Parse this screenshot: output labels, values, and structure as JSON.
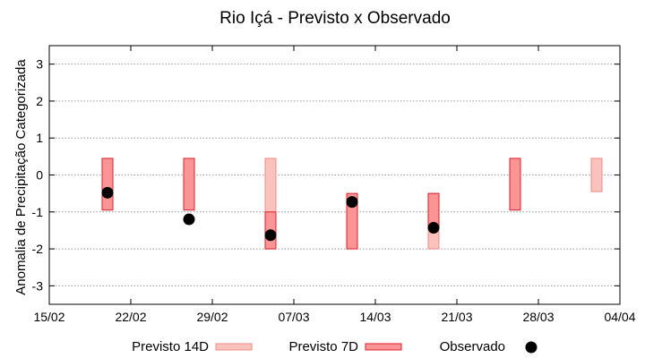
{
  "chart_data": {
    "type": "range-bar-scatter",
    "title": "Rio Içá - Previsto x Observado",
    "xlabel": "",
    "ylabel": "Anomalia de Precipitação Categorizada",
    "ylim": [
      -3.5,
      3.5
    ],
    "yticks": [
      -3,
      -2,
      -1,
      0,
      1,
      2,
      3
    ],
    "xlim": [
      "2024-02-15",
      "2024-04-04"
    ],
    "xticks": [
      "2024-02-15",
      "2024-02-22",
      "2024-02-29",
      "2024-03-07",
      "2024-03-14",
      "2024-03-21",
      "2024-03-28",
      "2024-04-04"
    ],
    "xtick_labels": [
      "15/02",
      "22/02",
      "29/02",
      "07/03",
      "14/03",
      "21/03",
      "28/03",
      "04/04"
    ],
    "grid": "horizontal-dotted",
    "legend_position": "bottom",
    "series": [
      {
        "name": "Previsto 14D",
        "kind": "range",
        "color": "#f9c2bd",
        "stroke": "#ef8b83",
        "points": [
          {
            "date": "2024-03-05",
            "low": -2.0,
            "high": 0.45
          },
          {
            "date": "2024-03-19",
            "low": -2.0,
            "high": -0.5
          },
          {
            "date": "2024-04-02",
            "low": -0.45,
            "high": 0.45
          }
        ]
      },
      {
        "name": "Previsto 7D",
        "kind": "range",
        "color": "#fb9494",
        "stroke": "#d8202a",
        "points": [
          {
            "date": "2024-02-20",
            "low": -0.95,
            "high": 0.45
          },
          {
            "date": "2024-02-27",
            "low": -0.95,
            "high": 0.45
          },
          {
            "date": "2024-03-05",
            "low": -2.0,
            "high": -1.0
          },
          {
            "date": "2024-03-12",
            "low": -2.0,
            "high": -0.5
          },
          {
            "date": "2024-03-19",
            "low": -1.4,
            "high": -0.5
          },
          {
            "date": "2024-03-26",
            "low": -0.95,
            "high": 0.45
          }
        ]
      },
      {
        "name": "Observado",
        "kind": "scatter",
        "color": "#000000",
        "points": [
          {
            "date": "2024-02-20",
            "value": -0.48
          },
          {
            "date": "2024-02-27",
            "value": -1.2
          },
          {
            "date": "2024-03-05",
            "value": -1.63
          },
          {
            "date": "2024-03-12",
            "value": -0.73
          },
          {
            "date": "2024-03-19",
            "value": -1.43
          }
        ]
      }
    ]
  }
}
